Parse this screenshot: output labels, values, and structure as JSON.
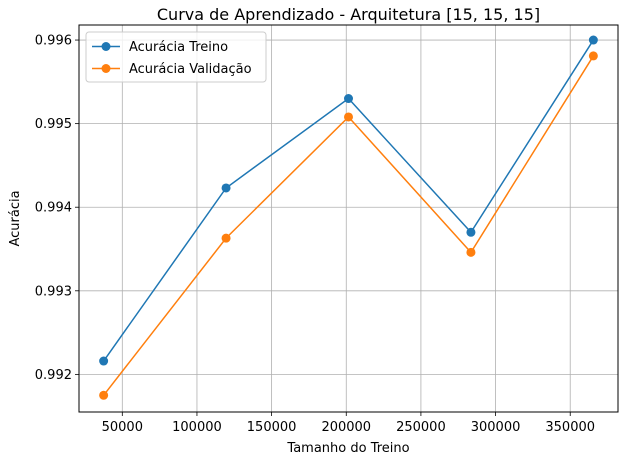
{
  "chart_data": {
    "type": "line",
    "title": "Curva de Aprendizado - Arquitetura [15, 15, 15]",
    "xlabel": "Tamanho do Treino",
    "ylabel": "Acurácia",
    "xlim": [
      21000,
      382000
    ],
    "ylim": [
      0.99155,
      0.99618
    ],
    "xticks": [
      50000,
      100000,
      150000,
      200000,
      250000,
      300000,
      350000
    ],
    "yticks": [
      0.992,
      0.993,
      0.994,
      0.995,
      0.996
    ],
    "grid": true,
    "legend_position": "upper-left",
    "x": [
      37500,
      119500,
      201500,
      283500,
      365500
    ],
    "series": [
      {
        "name": "Acurácia Treino",
        "color": "#1f77b4",
        "values": [
          0.99216,
          0.99423,
          0.9953,
          0.9937,
          0.996
        ]
      },
      {
        "name": "Acurácia Validação",
        "color": "#ff7f0e",
        "values": [
          0.99175,
          0.99363,
          0.99508,
          0.99346,
          0.99581
        ]
      }
    ]
  }
}
